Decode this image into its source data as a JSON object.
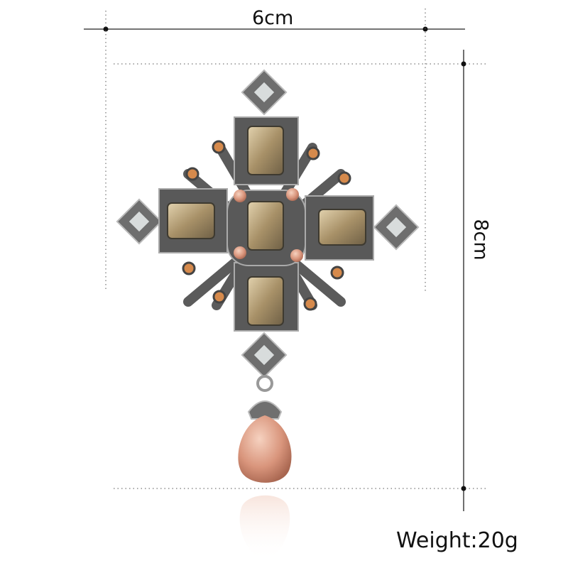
{
  "dimensions": {
    "width_label": "6cm",
    "height_label": "8cm"
  },
  "weight_label": "Weight:20g",
  "product": {
    "icon": "cross-brooch-with-pearl-drop",
    "colors": {
      "metal": "#8a8a8a",
      "gem": "#b9a37a",
      "pearl": "#d9a08a",
      "small_stone": "#d68a4c",
      "opal": "#d8dcdc"
    }
  }
}
